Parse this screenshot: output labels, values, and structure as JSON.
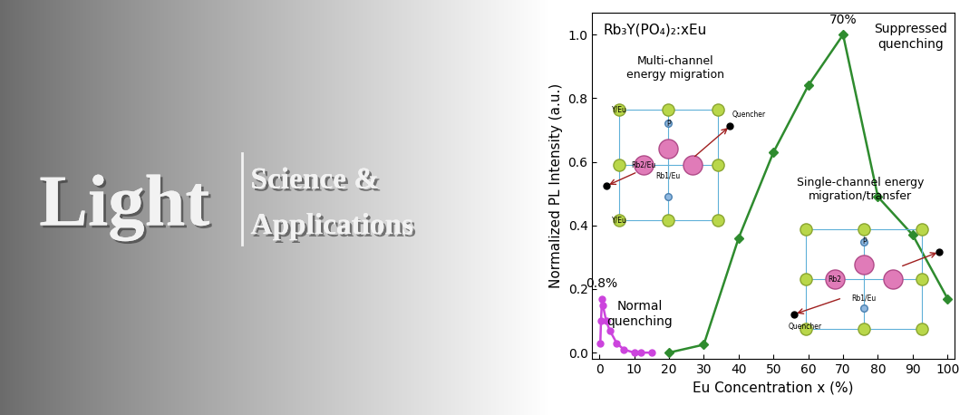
{
  "banner": {
    "title": "Light",
    "subtitle": [
      "Science &",
      "Applications"
    ]
  },
  "chart_data": {
    "type": "line",
    "title": "Rb₃Y(PO₄)₂:xEu",
    "x_label": "Eu Concentration x (%)",
    "y_label": "Normalized PL Intensity (a.u.)",
    "xlim": [
      -2,
      102
    ],
    "ylim": [
      -0.02,
      1.07
    ],
    "xticks": [
      0,
      10,
      20,
      30,
      40,
      50,
      60,
      70,
      80,
      90,
      100
    ],
    "yticks": [
      {
        "value": 0,
        "label": "0.0"
      },
      {
        "value": 0.2,
        "label": "0.2"
      },
      {
        "value": 0.4,
        "label": "0.4"
      },
      {
        "value": 0.6,
        "label": "0.6"
      },
      {
        "value": 0.8,
        "label": "0.8"
      },
      {
        "value": 1.0,
        "label": "1.0"
      }
    ],
    "series": [
      {
        "color": "#cc44dd",
        "marker": "circle",
        "line_style": "solid",
        "x": [
          0.3,
          0.5,
          0.8,
          1,
          2,
          3,
          5,
          7,
          10,
          12,
          15
        ],
        "values": [
          0.03,
          0.1,
          0.17,
          0.15,
          0.1,
          0.07,
          0.03,
          0.01,
          0.0,
          0.0,
          0.0
        ],
        "peak_label": "0.8%",
        "note": "Normal\nquenching"
      },
      {
        "color": "#2e8b2e",
        "marker": "diamond",
        "line_style": "solid",
        "x": [
          20,
          30,
          40,
          50,
          60,
          70,
          80,
          90,
          100
        ],
        "values": [
          0.0,
          0.025,
          0.36,
          0.63,
          0.84,
          1.0,
          0.49,
          0.37,
          0.17
        ],
        "peak_label": "70%",
        "note": "Suppressed\nquenching"
      }
    ],
    "insets": [
      {
        "caption": "Multi-channel\nenergy migration",
        "labels": [
          "Y/Eu",
          "Rb2/Eu",
          "Rb1/Eu",
          "P",
          "Y/Eu",
          "Quencher"
        ]
      },
      {
        "caption": "Single-channel energy\nmigration/transfer",
        "labels": [
          "P",
          "Rb2",
          "Rb1/Eu",
          "Quencher"
        ]
      }
    ]
  }
}
